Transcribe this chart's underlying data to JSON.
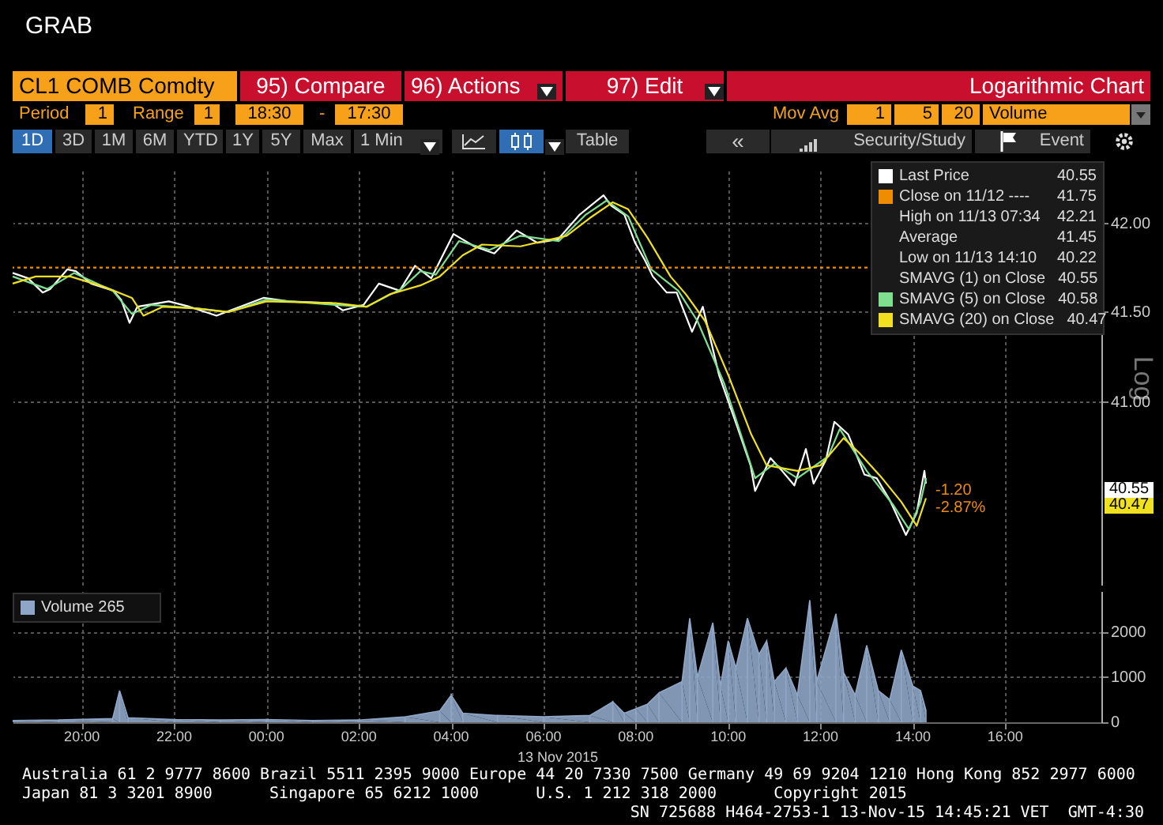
{
  "chart_data": [
    {
      "type": "other",
      "annotations": [
        "GRAB",
        "CL1 COMB Comdty",
        "95) Compare",
        "96) Actions",
        "97) Edit",
        "Logarithmic Chart",
        "Period",
        "1",
        "Range",
        "1",
        "18:30",
        "-",
        "17:30",
        "Mov Avg",
        "1",
        "5",
        "20",
        "Volume",
        "1D",
        "3D",
        "1M",
        "6M",
        "YTD",
        "1Y",
        "5Y",
        "Max",
        "1 Min",
        "Table",
        "«",
        "Security/Study",
        "Event"
      ]
    },
    {
      "type": "line",
      "log": "y",
      "ylabel": "Log",
      "grid": true,
      "tick_labels": "y",
      "legend": "top right",
      "line_style": "solid",
      "xlim": [
        "2015-11-12T18:30",
        "2015-11-13T18:05"
      ],
      "xticks": [
        {
          "value": "2015-11-12T20:00",
          "label": null
        },
        {
          "value": "2015-11-12T22:00",
          "label": null
        },
        {
          "value": "2015-11-13T00:00",
          "label": null
        },
        {
          "value": "2015-11-13T02:00",
          "label": null
        },
        {
          "value": "2015-11-13T04:00",
          "label": null
        },
        {
          "value": "2015-11-13T06:00",
          "label": null
        },
        {
          "value": "2015-11-13T08:00",
          "label": null
        },
        {
          "value": "2015-11-13T10:00",
          "label": null
        },
        {
          "value": "2015-11-13T12:00",
          "label": null
        },
        {
          "value": "2015-11-13T14:00",
          "label": null
        },
        {
          "value": "2015-11-13T16:00",
          "label": null
        }
      ],
      "ylim": [
        40.0,
        42.3
      ],
      "yticks": [
        {
          "value": 41,
          "label": "41.00"
        },
        {
          "value": 41.5,
          "label": "41.50"
        },
        {
          "value": 42,
          "label": "42.00"
        }
      ],
      "ref_lines": [
        {
          "axis": "y",
          "value": 41.75,
          "label": "Close on 11/12 ---- 41.75",
          "color": "#f08c00",
          "line_style": "dotted"
        }
      ],
      "annotations": [
        "High on 11/13 07:34 42.21",
        "Average 41.45",
        "Low on 11/13 14:10 40.22",
        "SMAVG (1) on Close 40.55",
        "40.55",
        "40.47",
        "-1.20",
        "-2.87%"
      ],
      "series": [
        {
          "name": "Last Price 40.55",
          "color": "#ffffff",
          "x": [
            "2015-11-12T18:30",
            "2015-11-12T18:50",
            "2015-11-12T19:09",
            "2015-11-12T19:19",
            "2015-11-12T19:41",
            "2015-11-12T19:52",
            "2015-11-12T20:12",
            "2015-11-12T20:41",
            "2015-11-12T20:51",
            "2015-11-12T21:02",
            "2015-11-12T21:12",
            "2015-11-12T21:53",
            "2015-11-12T22:20",
            "2015-11-12T22:55",
            "2015-11-12T23:07",
            "2015-11-12T23:56",
            "2015-11-13T00:29",
            "2015-11-13T01:25",
            "2015-11-13T01:39",
            "2015-11-13T02:06",
            "2015-11-13T02:26",
            "2015-11-13T02:53",
            "2015-11-13T03:13",
            "2015-11-13T03:34",
            "2015-11-13T04:03",
            "2015-11-13T04:30",
            "2015-11-13T04:56",
            "2015-11-13T05:25",
            "2015-11-13T05:52",
            "2015-11-13T06:19",
            "2015-11-13T06:47",
            "2015-11-13T07:18",
            "2015-11-13T07:28",
            "2015-11-13T07:45",
            "2015-11-13T07:59",
            "2015-11-13T08:12",
            "2015-11-13T08:22",
            "2015-11-13T08:40",
            "2015-11-13T08:53",
            "2015-11-13T09:13",
            "2015-11-13T09:27",
            "2015-11-13T09:48",
            "2015-11-13T10:12",
            "2015-11-13T10:29",
            "2015-11-13T10:35",
            "2015-11-13T10:55",
            "2015-11-13T11:10",
            "2015-11-13T11:26",
            "2015-11-13T11:41",
            "2015-11-13T11:51",
            "2015-11-13T12:07",
            "2015-11-13T12:18",
            "2015-11-13T12:36",
            "2015-11-13T12:57",
            "2015-11-13T13:13",
            "2015-11-13T13:30",
            "2015-11-13T13:51",
            "2015-11-13T14:05",
            "2015-11-13T14:15",
            "2015-11-13T14:17"
          ],
          "values": [
            41.72,
            41.69,
            41.61,
            41.63,
            41.74,
            41.73,
            41.66,
            41.62,
            41.57,
            41.44,
            41.53,
            41.56,
            41.53,
            41.48,
            41.5,
            41.58,
            41.56,
            41.55,
            41.51,
            41.54,
            41.66,
            41.62,
            41.76,
            41.69,
            41.94,
            41.87,
            41.83,
            41.96,
            41.89,
            41.91,
            42.05,
            42.16,
            42.1,
            42.05,
            41.89,
            41.79,
            41.7,
            41.61,
            41.61,
            41.39,
            41.53,
            41.15,
            40.86,
            40.65,
            40.51,
            40.69,
            40.62,
            40.54,
            40.74,
            40.55,
            40.68,
            40.89,
            40.82,
            40.6,
            40.58,
            40.46,
            40.27,
            40.39,
            40.62,
            40.55
          ]
        },
        {
          "name": "SMAVG (5) on Close 40.58",
          "color": "#7ee08e",
          "x": [
            "2015-11-12T18:30",
            "2015-11-12T19:15",
            "2015-11-12T19:50",
            "2015-11-12T20:40",
            "2015-11-12T21:05",
            "2015-11-12T21:30",
            "2015-11-12T22:30",
            "2015-11-12T23:10",
            "2015-11-13T00:00",
            "2015-11-13T01:30",
            "2015-11-13T02:10",
            "2015-11-13T02:55",
            "2015-11-13T03:20",
            "2015-11-13T03:40",
            "2015-11-13T04:10",
            "2015-11-13T04:50",
            "2015-11-13T05:30",
            "2015-11-13T06:20",
            "2015-11-13T06:55",
            "2015-11-13T07:22",
            "2015-11-13T07:50",
            "2015-11-13T08:20",
            "2015-11-13T08:55",
            "2015-11-13T09:20",
            "2015-11-13T09:55",
            "2015-11-13T10:35",
            "2015-11-13T11:00",
            "2015-11-13T11:30",
            "2015-11-13T12:10",
            "2015-11-13T12:25",
            "2015-11-13T13:00",
            "2015-11-13T13:35",
            "2015-11-13T13:55",
            "2015-11-13T14:10",
            "2015-11-13T14:17"
          ],
          "values": [
            41.7,
            41.63,
            41.72,
            41.62,
            41.49,
            41.54,
            41.52,
            41.5,
            41.57,
            41.54,
            41.53,
            41.63,
            41.73,
            41.71,
            41.9,
            41.85,
            41.93,
            41.9,
            42.05,
            42.13,
            42.04,
            41.74,
            41.62,
            41.45,
            41.1,
            40.58,
            40.66,
            40.58,
            40.7,
            40.85,
            40.62,
            40.43,
            40.3,
            40.45,
            40.58
          ]
        },
        {
          "name": "SMAVG (20) on Close 40.47",
          "color": "#f0e020",
          "x": [
            "2015-11-12T18:30",
            "2015-11-12T19:00",
            "2015-11-12T19:45",
            "2015-11-12T20:30",
            "2015-11-12T21:05",
            "2015-11-12T21:20",
            "2015-11-12T21:45",
            "2015-11-12T22:30",
            "2015-11-12T23:10",
            "2015-11-13T00:00",
            "2015-11-13T01:30",
            "2015-11-13T02:10",
            "2015-11-13T02:40",
            "2015-11-13T03:20",
            "2015-11-13T03:45",
            "2015-11-13T04:15",
            "2015-11-13T04:40",
            "2015-11-13T05:30",
            "2015-11-13T06:30",
            "2015-11-13T07:00",
            "2015-11-13T07:30",
            "2015-11-13T07:50",
            "2015-11-13T08:15",
            "2015-11-13T08:45",
            "2015-11-13T09:05",
            "2015-11-13T09:30",
            "2015-11-13T10:00",
            "2015-11-13T10:30",
            "2015-11-13T10:50",
            "2015-11-13T11:30",
            "2015-11-13T12:00",
            "2015-11-13T12:30",
            "2015-11-13T12:50",
            "2015-11-13T13:20",
            "2015-11-13T13:45",
            "2015-11-13T14:05",
            "2015-11-13T14:17"
          ],
          "values": [
            41.66,
            41.7,
            41.7,
            41.64,
            41.58,
            41.48,
            41.53,
            41.52,
            41.5,
            41.56,
            41.55,
            41.53,
            41.6,
            41.65,
            41.7,
            41.82,
            41.88,
            41.87,
            41.93,
            42.03,
            42.12,
            42.08,
            41.92,
            41.7,
            41.6,
            41.45,
            41.15,
            40.82,
            40.65,
            40.62,
            40.65,
            40.8,
            40.72,
            40.58,
            40.45,
            40.32,
            40.47
          ]
        }
      ]
    },
    {
      "type": "area",
      "xlabel": "13 Nov 2015",
      "grid": true,
      "legend": "top left",
      "xlim": [
        "2015-11-12T18:30",
        "2015-11-13T18:05"
      ],
      "xticks": [
        {
          "value": "2015-11-12T20:00",
          "label": "20:00"
        },
        {
          "value": "2015-11-12T22:00",
          "label": "22:00"
        },
        {
          "value": "2015-11-13T00:00",
          "label": "00:00"
        },
        {
          "value": "2015-11-13T02:00",
          "label": "02:00"
        },
        {
          "value": "2015-11-13T04:00",
          "label": "04:00"
        },
        {
          "value": "2015-11-13T06:00",
          "label": "06:00"
        },
        {
          "value": "2015-11-13T08:00",
          "label": "08:00"
        },
        {
          "value": "2015-11-13T10:00",
          "label": "10:00"
        },
        {
          "value": "2015-11-13T12:00",
          "label": "12:00"
        },
        {
          "value": "2015-11-13T14:00",
          "label": "14:00"
        },
        {
          "value": "2015-11-13T16:00",
          "label": "16:00"
        }
      ],
      "ylim": [
        0,
        2900
      ],
      "yticks": [
        0,
        1000,
        2000
      ],
      "annotations": [
        "Australia 61 2 9777 8600 Brazil 5511 2395 9000 Europe 44 20 7330 7500 Germany 49 69 9204 1210 Hong Kong 852 2977 6000",
        "Japan 81 3 3201 8900      Singapore 65 6212 1000      U.S. 1 212 318 2000      Copyright 2015",
        "SN 725688 H464-2753-1 13-Nov-15 14:45:21 VET  GMT-4:30"
      ],
      "series": [
        {
          "name": "Volume 265",
          "color": "#8fa6c6",
          "x": [
            "2015-11-12T18:30",
            "2015-11-12T19:30",
            "2015-11-12T20:40",
            "2015-11-12T20:49",
            "2015-11-12T21:00",
            "2015-11-12T22:00",
            "2015-11-12T23:00",
            "2015-11-13T00:00",
            "2015-11-13T01:00",
            "2015-11-13T02:00",
            "2015-11-13T03:00",
            "2015-11-13T03:45",
            "2015-11-13T04:00",
            "2015-11-13T04:15",
            "2015-11-13T05:00",
            "2015-11-13T06:00",
            "2015-11-13T07:00",
            "2015-11-13T07:30",
            "2015-11-13T07:45",
            "2015-11-13T08:00",
            "2015-11-13T08:15",
            "2015-11-13T08:30",
            "2015-11-13T09:00",
            "2015-11-13T09:10",
            "2015-11-13T09:20",
            "2015-11-13T09:40",
            "2015-11-13T09:50",
            "2015-11-13T10:00",
            "2015-11-13T10:10",
            "2015-11-13T10:25",
            "2015-11-13T10:40",
            "2015-11-13T10:50",
            "2015-11-13T11:00",
            "2015-11-13T11:15",
            "2015-11-13T11:30",
            "2015-11-13T11:46",
            "2015-11-13T11:55",
            "2015-11-13T12:20",
            "2015-11-13T12:30",
            "2015-11-13T12:45",
            "2015-11-13T13:00",
            "2015-11-13T13:15",
            "2015-11-13T13:30",
            "2015-11-13T13:45",
            "2015-11-13T14:00",
            "2015-11-13T14:10",
            "2015-11-13T14:17"
          ],
          "values": [
            40,
            50,
            80,
            700,
            100,
            60,
            50,
            60,
            40,
            50,
            120,
            250,
            600,
            200,
            150,
            120,
            150,
            450,
            200,
            300,
            400,
            650,
            900,
            2300,
            1000,
            2200,
            800,
            1800,
            1200,
            2300,
            1500,
            1800,
            900,
            1200,
            600,
            2700,
            900,
            2400,
            1100,
            600,
            1700,
            700,
            500,
            1600,
            800,
            700,
            265
          ]
        }
      ]
    }
  ]
}
